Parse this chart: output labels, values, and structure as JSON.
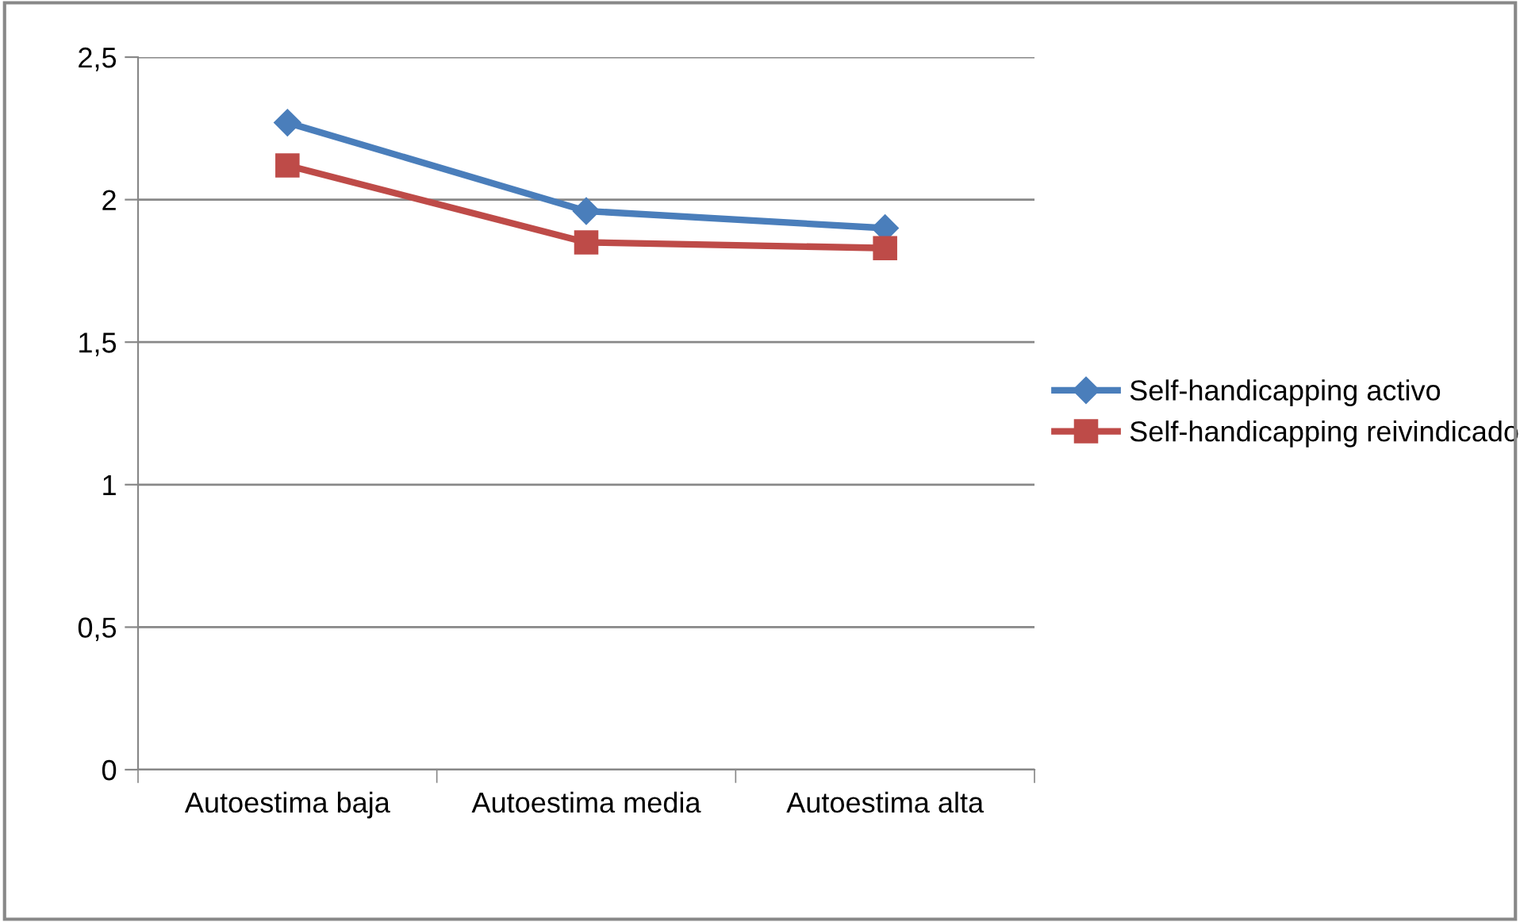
{
  "chart_data": {
    "type": "line",
    "categories": [
      "Autoestima baja",
      "Autoestima media",
      "Autoestima alta"
    ],
    "series": [
      {
        "name": "Self-handicapping activo",
        "color": "#4a7ebb",
        "marker": "diamond",
        "values": [
          2.27,
          1.96,
          1.9
        ]
      },
      {
        "name": "Self-handicapping reivindicado",
        "color": "#be4b48",
        "marker": "square",
        "values": [
          2.12,
          1.85,
          1.83
        ]
      }
    ],
    "ylim": [
      0,
      2.5
    ],
    "yticks": [
      0,
      {
        "value": 0.5,
        "label": "0,5"
      },
      1,
      {
        "value": 1.5,
        "label": "1,5"
      },
      2,
      {
        "value": 2.5,
        "label": "2,5"
      }
    ],
    "grid": "y",
    "legend": "right",
    "line_style": "solid"
  }
}
